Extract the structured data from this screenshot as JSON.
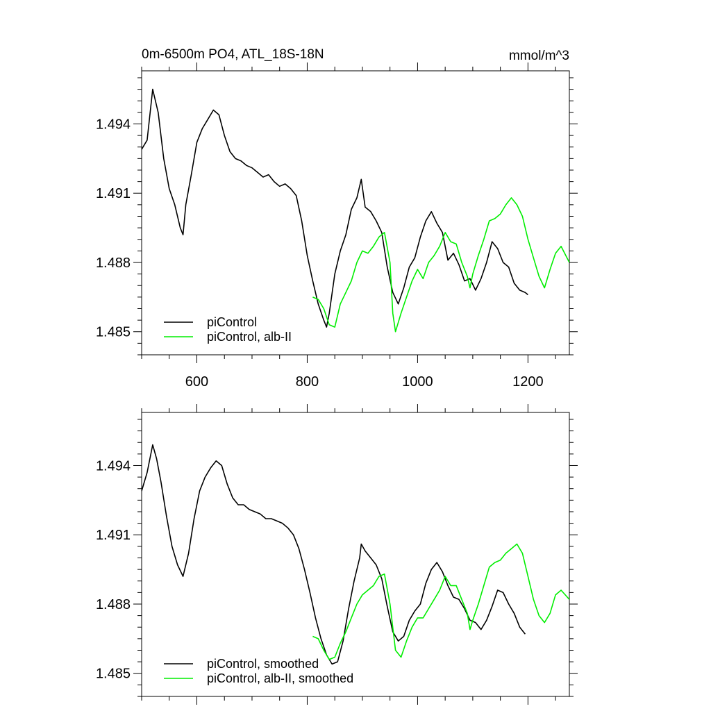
{
  "chart_data": [
    {
      "type": "line",
      "title": "0m-6500m PO4, ATL_18S-18N",
      "unit": "mmol/m^3",
      "xlim": [
        500,
        1275
      ],
      "ylim": [
        1.484,
        1.4963
      ],
      "xticks": [
        600,
        800,
        1000,
        1200
      ],
      "xtick_labels": [
        "600",
        "800",
        "1000",
        "1200"
      ],
      "yticks": [
        1.485,
        1.488,
        1.491,
        1.494
      ],
      "ytick_labels": [
        "1.485",
        "1.488",
        "1.491",
        "1.494"
      ],
      "show_xtick_labels": true,
      "legend_position": "bottom-left",
      "series": [
        {
          "name": "piControl",
          "color": "#000000",
          "x": [
            500,
            510,
            520,
            530,
            540,
            550,
            560,
            570,
            575,
            580,
            590,
            600,
            610,
            620,
            630,
            640,
            650,
            660,
            670,
            680,
            690,
            700,
            710,
            720,
            730,
            740,
            750,
            760,
            770,
            780,
            790,
            800,
            810,
            820,
            830,
            835,
            840,
            850,
            860,
            870,
            880,
            890,
            898,
            905,
            915,
            925,
            935,
            945,
            955,
            965,
            975,
            985,
            995,
            1005,
            1015,
            1025,
            1035,
            1045,
            1055,
            1065,
            1075,
            1085,
            1095,
            1105,
            1115,
            1125,
            1135,
            1145,
            1155,
            1165,
            1175,
            1185,
            1195,
            1200
          ],
          "y": [
            1.4929,
            1.4933,
            1.4955,
            1.4945,
            1.4925,
            1.4912,
            1.4905,
            1.4895,
            1.4892,
            1.4905,
            1.4918,
            1.4932,
            1.4938,
            1.4942,
            1.4946,
            1.4944,
            1.4935,
            1.4928,
            1.4925,
            1.4924,
            1.4922,
            1.4921,
            1.4919,
            1.4917,
            1.4918,
            1.4915,
            1.4913,
            1.4914,
            1.4912,
            1.4909,
            1.4898,
            1.4883,
            1.4872,
            1.4862,
            1.4855,
            1.4852,
            1.4858,
            1.4875,
            1.4885,
            1.4892,
            1.4903,
            1.4908,
            1.4916,
            1.4904,
            1.4902,
            1.4898,
            1.4893,
            1.4878,
            1.4867,
            1.4862,
            1.4869,
            1.4878,
            1.4882,
            1.4891,
            1.4898,
            1.4902,
            1.4897,
            1.4893,
            1.4881,
            1.4884,
            1.4879,
            1.4872,
            1.4873,
            1.4868,
            1.4873,
            1.488,
            1.4889,
            1.4886,
            1.488,
            1.4878,
            1.4871,
            1.4868,
            1.4867,
            1.4866
          ]
        },
        {
          "name": "piControl, alb-II",
          "color": "#00ee00",
          "x": [
            810,
            820,
            830,
            840,
            850,
            860,
            870,
            880,
            890,
            900,
            910,
            920,
            930,
            940,
            950,
            955,
            960,
            970,
            980,
            990,
            1000,
            1010,
            1020,
            1030,
            1040,
            1050,
            1060,
            1070,
            1080,
            1090,
            1095,
            1100,
            1110,
            1120,
            1130,
            1140,
            1150,
            1160,
            1170,
            1180,
            1190,
            1200,
            1210,
            1220,
            1230,
            1240,
            1250,
            1260,
            1275
          ],
          "y": [
            1.4865,
            1.4864,
            1.486,
            1.4853,
            1.4852,
            1.4862,
            1.4867,
            1.4872,
            1.488,
            1.4885,
            1.4884,
            1.4887,
            1.4891,
            1.4893,
            1.488,
            1.4858,
            1.485,
            1.4858,
            1.4865,
            1.4872,
            1.4877,
            1.4873,
            1.488,
            1.4883,
            1.4887,
            1.4893,
            1.4889,
            1.4888,
            1.488,
            1.4874,
            1.4869,
            1.4875,
            1.4883,
            1.489,
            1.4898,
            1.4899,
            1.4901,
            1.4905,
            1.4908,
            1.4905,
            1.49,
            1.489,
            1.4882,
            1.4874,
            1.4869,
            1.4877,
            1.4884,
            1.4887,
            1.488
          ]
        }
      ]
    },
    {
      "type": "line",
      "title": "",
      "unit": "",
      "xlim": [
        500,
        1275
      ],
      "ylim": [
        1.484,
        1.4963
      ],
      "xticks": [
        600,
        800,
        1000,
        1200
      ],
      "xtick_labels": [
        "600",
        "800",
        "1000",
        "1200"
      ],
      "yticks": [
        1.485,
        1.488,
        1.491,
        1.494
      ],
      "ytick_labels": [
        "1.485",
        "1.488",
        "1.491",
        "1.494"
      ],
      "show_xtick_labels": false,
      "legend_position": "bottom-left",
      "series": [
        {
          "name": "piControl, smoothed",
          "color": "#000000",
          "x": [
            500,
            510,
            520,
            527,
            535,
            545,
            555,
            565,
            575,
            585,
            595,
            605,
            615,
            625,
            635,
            645,
            655,
            665,
            675,
            685,
            695,
            705,
            715,
            725,
            735,
            745,
            755,
            765,
            775,
            785,
            795,
            805,
            815,
            825,
            835,
            845,
            855,
            865,
            875,
            885,
            895,
            898,
            905,
            915,
            925,
            935,
            945,
            955,
            965,
            975,
            985,
            995,
            1005,
            1015,
            1025,
            1035,
            1045,
            1055,
            1065,
            1075,
            1085,
            1095,
            1105,
            1115,
            1125,
            1135,
            1145,
            1155,
            1165,
            1175,
            1185,
            1195
          ],
          "y": [
            1.4929,
            1.4937,
            1.4949,
            1.4943,
            1.4933,
            1.4918,
            1.4905,
            1.4897,
            1.4892,
            1.4902,
            1.4917,
            1.4929,
            1.4935,
            1.4939,
            1.4942,
            1.494,
            1.4932,
            1.4926,
            1.4923,
            1.4923,
            1.4921,
            1.492,
            1.4919,
            1.4917,
            1.4917,
            1.4916,
            1.4915,
            1.4913,
            1.491,
            1.4904,
            1.4895,
            1.4885,
            1.4874,
            1.4865,
            1.4858,
            1.4854,
            1.4855,
            1.4864,
            1.4878,
            1.489,
            1.49,
            1.4906,
            1.4903,
            1.49,
            1.4897,
            1.4891,
            1.4879,
            1.4868,
            1.4864,
            1.4866,
            1.4873,
            1.4877,
            1.488,
            1.4889,
            1.4895,
            1.4898,
            1.4894,
            1.4888,
            1.4883,
            1.4882,
            1.4878,
            1.4873,
            1.4872,
            1.4869,
            1.4873,
            1.4879,
            1.4886,
            1.4885,
            1.488,
            1.4876,
            1.487,
            1.4867
          ]
        },
        {
          "name": "piControl, alb-II, smoothed",
          "color": "#00ee00",
          "x": [
            810,
            820,
            830,
            840,
            850,
            860,
            870,
            880,
            890,
            900,
            910,
            920,
            930,
            940,
            950,
            960,
            970,
            980,
            990,
            1000,
            1010,
            1020,
            1030,
            1040,
            1050,
            1060,
            1070,
            1080,
            1090,
            1095,
            1100,
            1110,
            1120,
            1130,
            1140,
            1150,
            1160,
            1170,
            1180,
            1190,
            1200,
            1210,
            1220,
            1230,
            1240,
            1250,
            1260,
            1275
          ],
          "y": [
            1.4866,
            1.4865,
            1.486,
            1.4856,
            1.4857,
            1.4863,
            1.4868,
            1.4874,
            1.488,
            1.4884,
            1.4886,
            1.4888,
            1.4892,
            1.4893,
            1.488,
            1.486,
            1.4857,
            1.4864,
            1.487,
            1.4874,
            1.4874,
            1.4878,
            1.4882,
            1.4886,
            1.4892,
            1.4888,
            1.4888,
            1.4882,
            1.4876,
            1.4869,
            1.4873,
            1.488,
            1.4888,
            1.4896,
            1.4898,
            1.4899,
            1.4902,
            1.4904,
            1.4906,
            1.4902,
            1.4892,
            1.4882,
            1.4875,
            1.4872,
            1.4876,
            1.4884,
            1.4886,
            1.4882
          ]
        }
      ]
    }
  ]
}
